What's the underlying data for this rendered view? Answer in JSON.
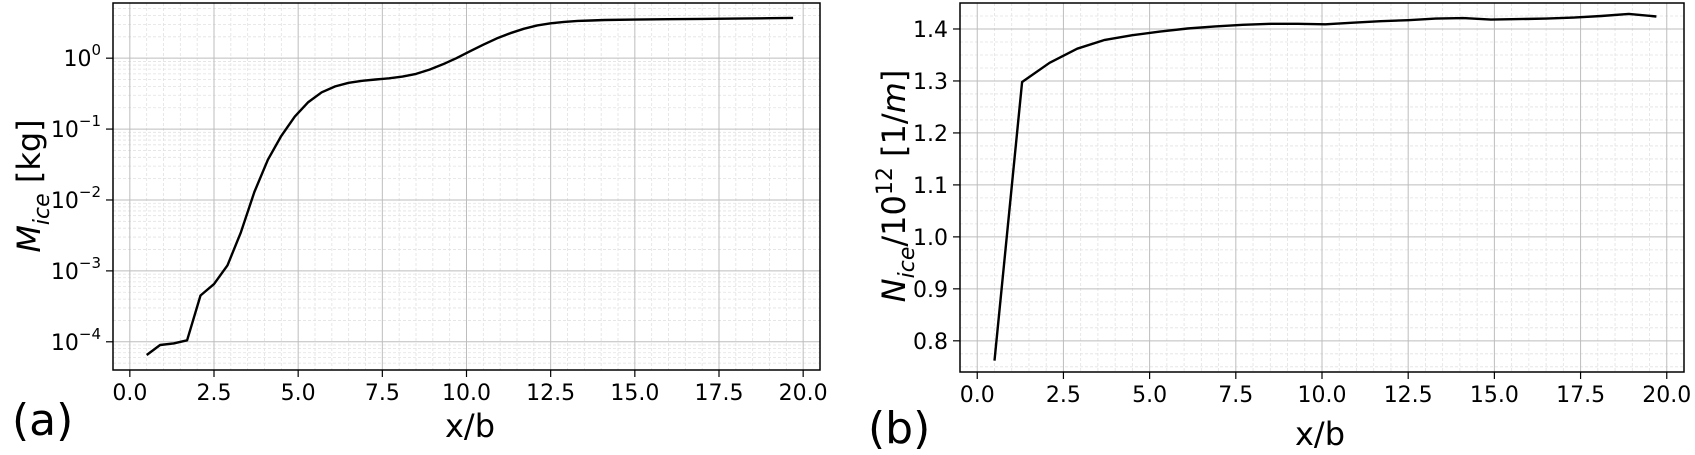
{
  "chart_data": [
    {
      "type": "line",
      "panel_label": "(a)",
      "xlabel": "x/b",
      "ylabel": "M_ice [kg]",
      "ylabel_parts": {
        "main": "M",
        "sub": "ice",
        "rest": " [kg]"
      },
      "xlim": [
        -0.5,
        20.5
      ],
      "ylim": [
        4e-05,
        6.0
      ],
      "yscale": "log",
      "grid": true,
      "xticks": [
        0.0,
        2.5,
        5.0,
        7.5,
        10.0,
        12.5,
        15.0,
        17.5,
        20.0
      ],
      "xtick_labels": [
        "0.0",
        "2.5",
        "5.0",
        "7.5",
        "10.0",
        "12.5",
        "15.0",
        "17.5",
        "20.0"
      ],
      "yticks": [
        0.0001,
        0.001,
        0.01,
        0.1,
        1
      ],
      "ytick_labels": [
        {
          "base": "10",
          "exp": "−4"
        },
        {
          "base": "10",
          "exp": "−3"
        },
        {
          "base": "10",
          "exp": "−2"
        },
        {
          "base": "10",
          "exp": "−1"
        },
        {
          "base": "10",
          "exp": "0"
        }
      ],
      "series": [
        {
          "color": "#000000",
          "x": [
            0.5,
            0.9,
            1.3,
            1.7,
            2.1,
            2.5,
            2.9,
            3.3,
            3.7,
            4.1,
            4.5,
            4.9,
            5.3,
            5.7,
            6.1,
            6.5,
            6.9,
            7.3,
            7.7,
            8.1,
            8.5,
            8.9,
            9.3,
            9.7,
            10.1,
            10.5,
            10.9,
            11.3,
            11.7,
            12.1,
            12.5,
            12.9,
            13.3,
            13.7,
            14.1,
            15.0,
            16.0,
            17.0,
            18.0,
            19.0,
            19.7
          ],
          "y": [
            6.5e-05,
            9e-05,
            9.5e-05,
            0.000105,
            0.00045,
            0.00065,
            0.0012,
            0.0035,
            0.013,
            0.037,
            0.08,
            0.15,
            0.24,
            0.33,
            0.4,
            0.45,
            0.48,
            0.5,
            0.52,
            0.55,
            0.6,
            0.69,
            0.82,
            1.0,
            1.25,
            1.55,
            1.9,
            2.25,
            2.6,
            2.9,
            3.1,
            3.25,
            3.35,
            3.4,
            3.45,
            3.5,
            3.55,
            3.58,
            3.62,
            3.66,
            3.7
          ]
        }
      ]
    },
    {
      "type": "line",
      "panel_label": "(b)",
      "xlabel": "x/b",
      "ylabel": "N_ice/10^12 [1/m]",
      "ylabel_parts": {
        "main": "N",
        "sub": "ice",
        "mid": "/10",
        "sup": "12",
        "rest1": " [1/",
        "ital": "m",
        "rest2": "]"
      },
      "xlim": [
        -0.5,
        20.5
      ],
      "ylim": [
        0.74,
        1.45
      ],
      "yscale": "linear",
      "grid": true,
      "xticks": [
        0.0,
        2.5,
        5.0,
        7.5,
        10.0,
        12.5,
        15.0,
        17.5,
        20.0
      ],
      "xtick_labels": [
        "0.0",
        "2.5",
        "5.0",
        "7.5",
        "10.0",
        "12.5",
        "15.0",
        "17.5",
        "20.0"
      ],
      "yticks": [
        0.8,
        0.9,
        1.0,
        1.1,
        1.2,
        1.3,
        1.4
      ],
      "ytick_labels": [
        "0.8",
        "0.9",
        "1.0",
        "1.1",
        "1.2",
        "1.3",
        "1.4"
      ],
      "series": [
        {
          "color": "#000000",
          "x": [
            0.5,
            1.3,
            2.1,
            2.9,
            3.7,
            4.5,
            5.3,
            6.1,
            6.9,
            7.7,
            8.5,
            9.3,
            10.1,
            10.9,
            11.7,
            12.5,
            13.3,
            14.1,
            14.9,
            15.7,
            16.5,
            17.3,
            18.1,
            18.9,
            19.7
          ],
          "y": [
            0.762,
            1.298,
            1.335,
            1.362,
            1.379,
            1.388,
            1.395,
            1.401,
            1.405,
            1.408,
            1.41,
            1.41,
            1.409,
            1.412,
            1.415,
            1.417,
            1.42,
            1.421,
            1.418,
            1.419,
            1.42,
            1.422,
            1.425,
            1.429,
            1.424
          ]
        }
      ]
    }
  ]
}
